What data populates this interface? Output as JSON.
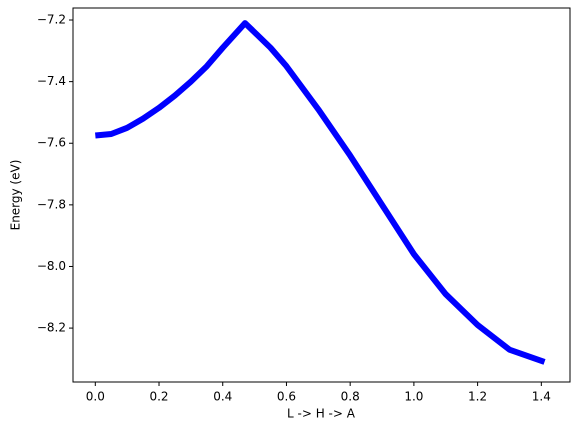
{
  "chart_data": {
    "type": "line",
    "x_label": "L -> H -> A",
    "y_label": "Energy (eV)",
    "x": [
      0,
      0.05,
      0.1,
      0.15,
      0.2,
      0.25,
      0.3,
      0.35,
      0.4,
      0.47,
      0.55,
      0.6,
      0.7,
      0.8,
      0.9,
      1.0,
      1.1,
      1.2,
      1.3,
      1.41
    ],
    "series": [
      {
        "color": "#0000ff",
        "values": [
          -7.575,
          -7.57,
          -7.55,
          -7.52,
          -7.485,
          -7.445,
          -7.4,
          -7.35,
          -7.29,
          -7.21,
          -7.29,
          -7.35,
          -7.49,
          -7.64,
          -7.8,
          -7.96,
          -8.09,
          -8.19,
          -8.27,
          -8.31
        ]
      }
    ],
    "xlim": [
      -0.07,
      1.49
    ],
    "ylim": [
      -8.375,
      -7.161
    ],
    "xticks": [
      {
        "value": 0,
        "label": "0.0"
      },
      0.2,
      0.4,
      0.6,
      0.8,
      {
        "value": 1,
        "label": "1.0"
      },
      1.2,
      1.4
    ],
    "yticks": [
      {
        "value": -8.2,
        "label": "−8.2"
      },
      {
        "value": -8,
        "label": "−8.0"
      },
      {
        "value": -7.8,
        "label": "−7.8"
      },
      {
        "value": -7.6,
        "label": "−7.6"
      },
      {
        "value": -7.4,
        "label": "−7.4"
      },
      {
        "value": -7.2,
        "label": "−7.2"
      }
    ]
  }
}
